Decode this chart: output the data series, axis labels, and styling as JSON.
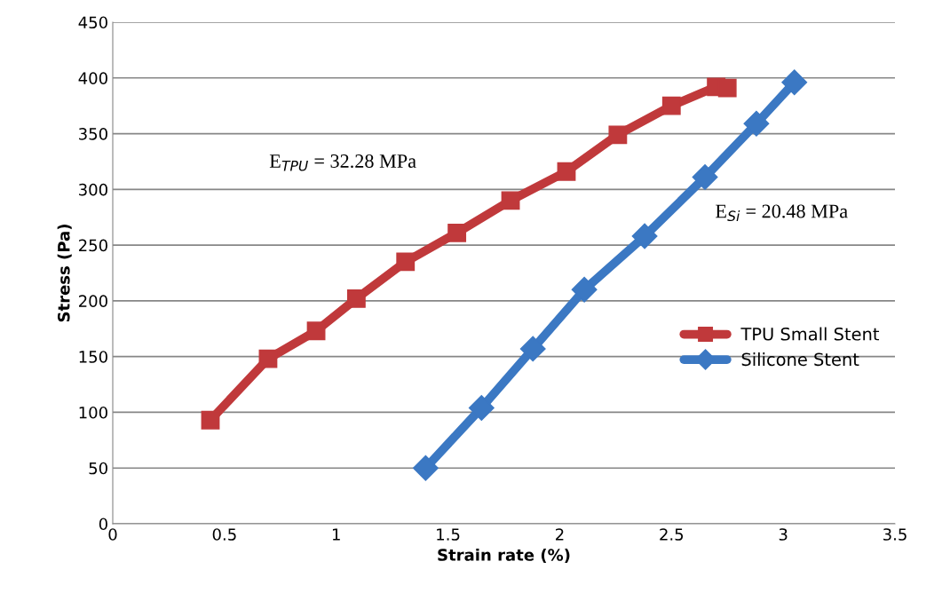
{
  "chart_data": {
    "type": "line",
    "xlabel": "Strain rate (%)",
    "ylabel": "Stress (Pa)",
    "xlim": [
      0,
      3.5
    ],
    "xticks": [
      0,
      0.5,
      1,
      1.5,
      2,
      2.5,
      3,
      3.5
    ],
    "ylim": [
      0,
      450
    ],
    "yticks": [
      0,
      50,
      100,
      150,
      200,
      250,
      300,
      350,
      400,
      450
    ],
    "grid": "y",
    "legend": "right",
    "annotations": [
      "E$_{TPU}$ = 32.28 MPa",
      "E$_{Si}$ = 20.48 MPa"
    ],
    "series": [
      {
        "name": "TPU Small Stent",
        "color": "#c0393b",
        "marker": "square",
        "x": [
          0.437,
          0.695,
          0.91,
          1.09,
          1.31,
          1.54,
          1.78,
          2.03,
          2.26,
          2.5,
          2.7,
          2.75
        ],
        "values": [
          93,
          148,
          173,
          202,
          235,
          261,
          290,
          316,
          349,
          375,
          392,
          391
        ]
      },
      {
        "name": "Silicone Stent",
        "color": "#3b78c3",
        "marker": "diamond",
        "x": [
          1.4,
          1.65,
          1.88,
          2.11,
          2.38,
          2.65,
          2.88,
          3.05
        ],
        "values": [
          50,
          104,
          157,
          210,
          258,
          311,
          359,
          396
        ]
      }
    ]
  }
}
